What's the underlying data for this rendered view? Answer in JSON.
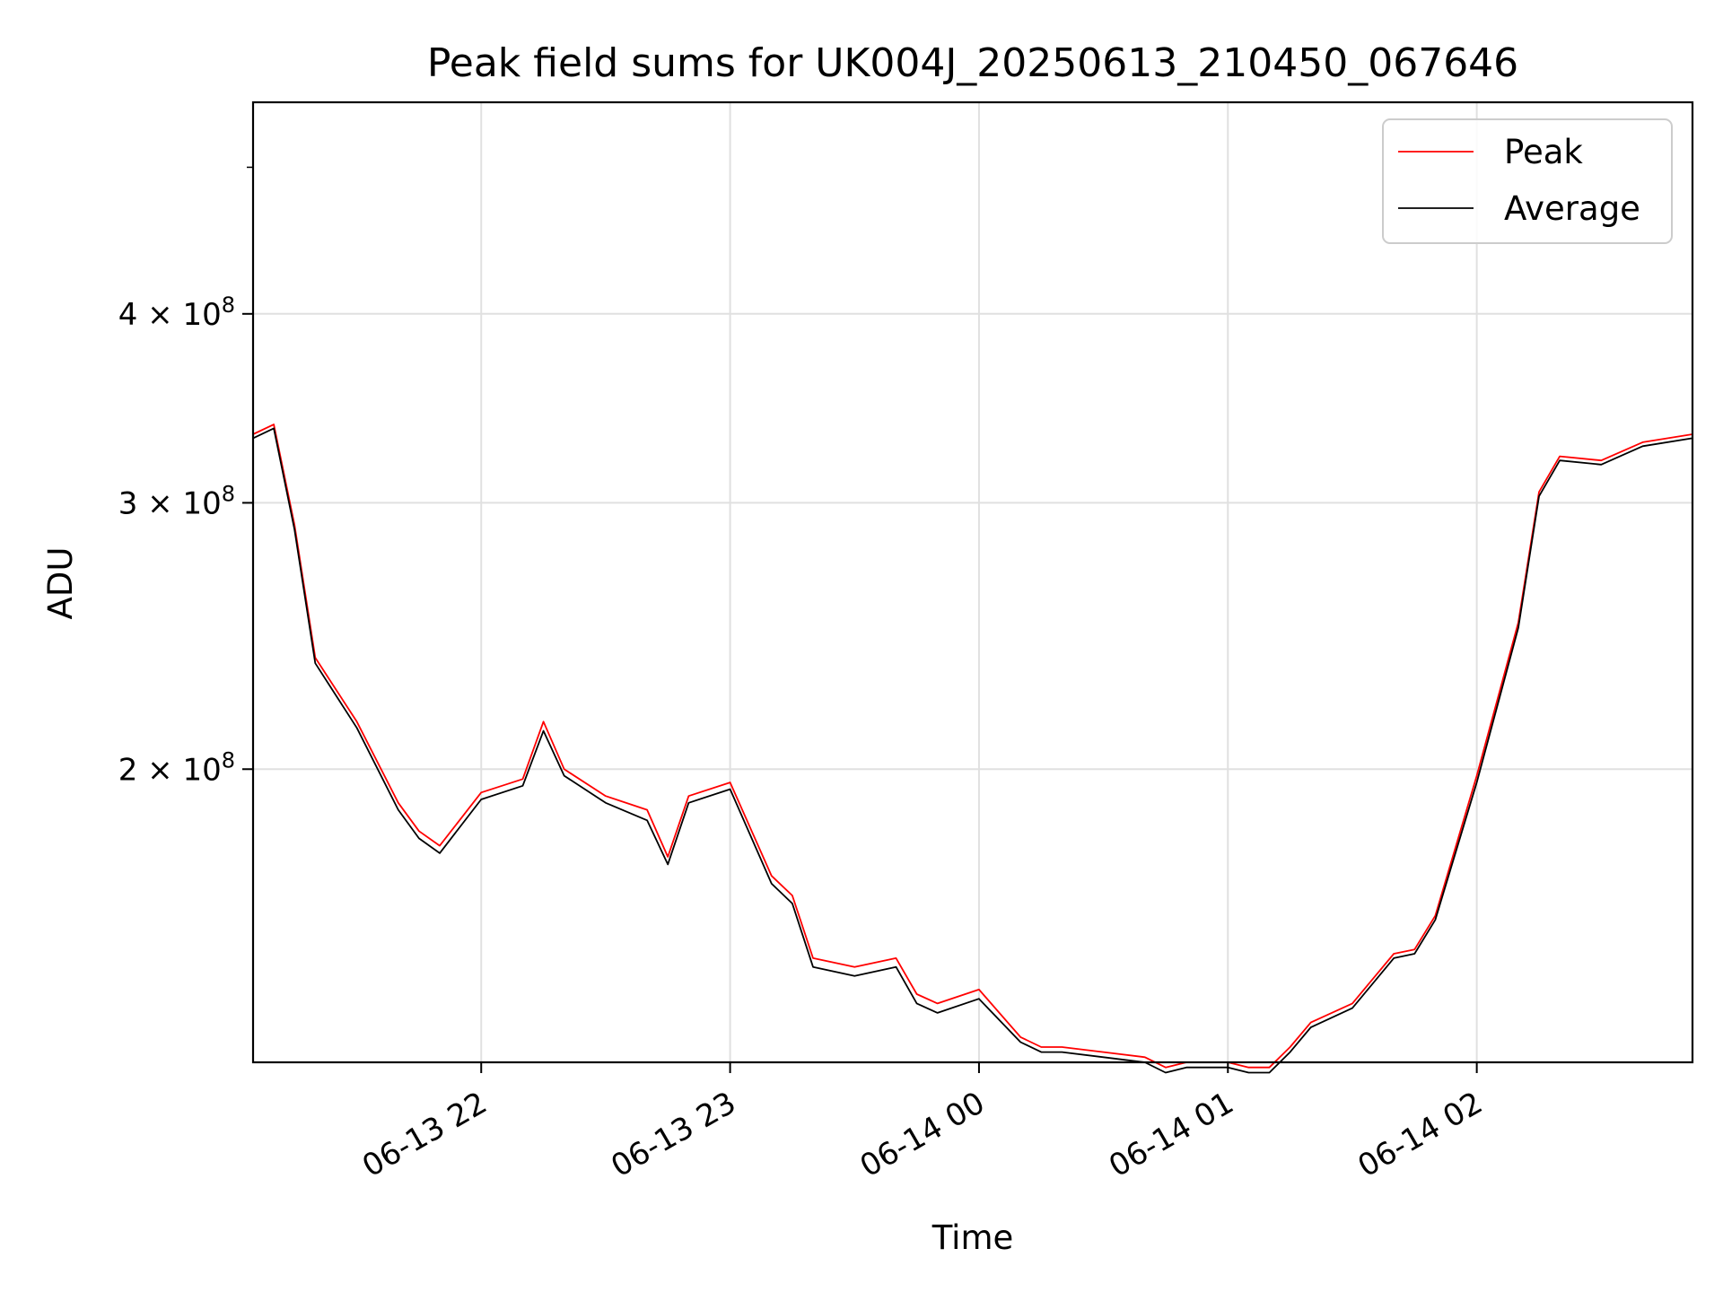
{
  "chart_data": {
    "type": "line",
    "title": "Peak field sums for UK004J_20250613_210450_067646",
    "xlabel": "Time",
    "ylabel": "ADU",
    "y_scale": "log",
    "x_range": [
      "2025-06-13 21:05",
      "2025-06-14 02:52"
    ],
    "ylim": [
      128000000,
      552000000
    ],
    "x_ticks": [
      {
        "label": "06-13 22",
        "value": "2025-06-13 22:00"
      },
      {
        "label": "06-13 23",
        "value": "2025-06-13 23:00"
      },
      {
        "label": "06-14 00",
        "value": "2025-06-14 00:00"
      },
      {
        "label": "06-14 01",
        "value": "2025-06-14 01:00"
      },
      {
        "label": "06-14 02",
        "value": "2025-06-14 02:00"
      }
    ],
    "y_ticks": [
      {
        "mantissa": "2",
        "exponent": "8",
        "value": 200000000
      },
      {
        "mantissa": "3",
        "exponent": "8",
        "value": 300000000
      },
      {
        "mantissa": "4",
        "exponent": "8",
        "value": 400000000
      }
    ],
    "y_minor_ticks": [
      500000000
    ],
    "grid": true,
    "legend_position": "upper right",
    "series": [
      {
        "name": "Peak",
        "color": "#ff0000",
        "x": [
          "2025-06-13 21:05",
          "2025-06-13 21:10",
          "2025-06-13 21:15",
          "2025-06-13 21:20",
          "2025-06-13 21:30",
          "2025-06-13 21:40",
          "2025-06-13 21:45",
          "2025-06-13 21:50",
          "2025-06-13 22:00",
          "2025-06-13 22:10",
          "2025-06-13 22:15",
          "2025-06-13 22:20",
          "2025-06-13 22:30",
          "2025-06-13 22:40",
          "2025-06-13 22:45",
          "2025-06-13 22:50",
          "2025-06-13 23:00",
          "2025-06-13 23:10",
          "2025-06-13 23:15",
          "2025-06-13 23:20",
          "2025-06-13 23:30",
          "2025-06-13 23:40",
          "2025-06-13 23:45",
          "2025-06-13 23:50",
          "2025-06-14 00:00",
          "2025-06-14 00:10",
          "2025-06-14 00:15",
          "2025-06-14 00:20",
          "2025-06-14 00:30",
          "2025-06-14 00:40",
          "2025-06-14 00:45",
          "2025-06-14 00:50",
          "2025-06-14 01:00",
          "2025-06-14 01:05",
          "2025-06-14 01:10",
          "2025-06-14 01:15",
          "2025-06-14 01:20",
          "2025-06-14 01:30",
          "2025-06-14 01:40",
          "2025-06-14 01:45",
          "2025-06-14 01:50",
          "2025-06-14 02:00",
          "2025-06-14 02:10",
          "2025-06-14 02:15",
          "2025-06-14 02:20",
          "2025-06-14 02:30",
          "2025-06-14 02:40",
          "2025-06-14 02:52"
        ],
        "y": [
          333000000,
          338000000,
          290000000,
          237000000,
          215000000,
          190000000,
          182000000,
          178000000,
          193000000,
          197000000,
          215000000,
          200000000,
          192000000,
          188000000,
          175000000,
          192000000,
          196000000,
          170000000,
          165000000,
          150000000,
          148000000,
          150000000,
          142000000,
          140000000,
          143000000,
          133000000,
          131000000,
          131000000,
          130000000,
          129000000,
          127000000,
          128000000,
          128000000,
          127000000,
          127000000,
          131000000,
          136000000,
          140000000,
          151000000,
          152000000,
          160000000,
          198000000,
          250000000,
          305000000,
          322000000,
          320000000,
          329000000,
          333000000
        ]
      },
      {
        "name": "Average",
        "color": "#000000",
        "x": [
          "2025-06-13 21:05",
          "2025-06-13 21:10",
          "2025-06-13 21:15",
          "2025-06-13 21:20",
          "2025-06-13 21:30",
          "2025-06-13 21:40",
          "2025-06-13 21:45",
          "2025-06-13 21:50",
          "2025-06-13 22:00",
          "2025-06-13 22:10",
          "2025-06-13 22:15",
          "2025-06-13 22:20",
          "2025-06-13 22:30",
          "2025-06-13 22:40",
          "2025-06-13 22:45",
          "2025-06-13 22:50",
          "2025-06-13 23:00",
          "2025-06-13 23:10",
          "2025-06-13 23:15",
          "2025-06-13 23:20",
          "2025-06-13 23:30",
          "2025-06-13 23:40",
          "2025-06-13 23:45",
          "2025-06-13 23:50",
          "2025-06-14 00:00",
          "2025-06-14 00:10",
          "2025-06-14 00:15",
          "2025-06-14 00:20",
          "2025-06-14 00:30",
          "2025-06-14 00:40",
          "2025-06-14 00:45",
          "2025-06-14 00:50",
          "2025-06-14 01:00",
          "2025-06-14 01:05",
          "2025-06-14 01:10",
          "2025-06-14 01:15",
          "2025-06-14 01:20",
          "2025-06-14 01:30",
          "2025-06-14 01:40",
          "2025-06-14 01:45",
          "2025-06-14 01:50",
          "2025-06-14 02:00",
          "2025-06-14 02:10",
          "2025-06-14 02:15",
          "2025-06-14 02:20",
          "2025-06-14 02:30",
          "2025-06-14 02:40",
          "2025-06-14 02:52"
        ],
        "y": [
          331000000,
          336000000,
          288000000,
          235000000,
          213000000,
          188000000,
          180000000,
          176000000,
          191000000,
          195000000,
          212000000,
          198000000,
          190000000,
          185000000,
          173000000,
          190000000,
          194000000,
          168000000,
          163000000,
          148000000,
          146000000,
          148000000,
          140000000,
          138000000,
          141000000,
          132000000,
          130000000,
          130000000,
          129000000,
          128000000,
          126000000,
          127000000,
          127000000,
          126000000,
          126000000,
          130000000,
          135000000,
          139000000,
          150000000,
          151000000,
          159000000,
          196000000,
          248000000,
          303000000,
          320000000,
          318000000,
          327000000,
          331000000
        ]
      }
    ]
  }
}
